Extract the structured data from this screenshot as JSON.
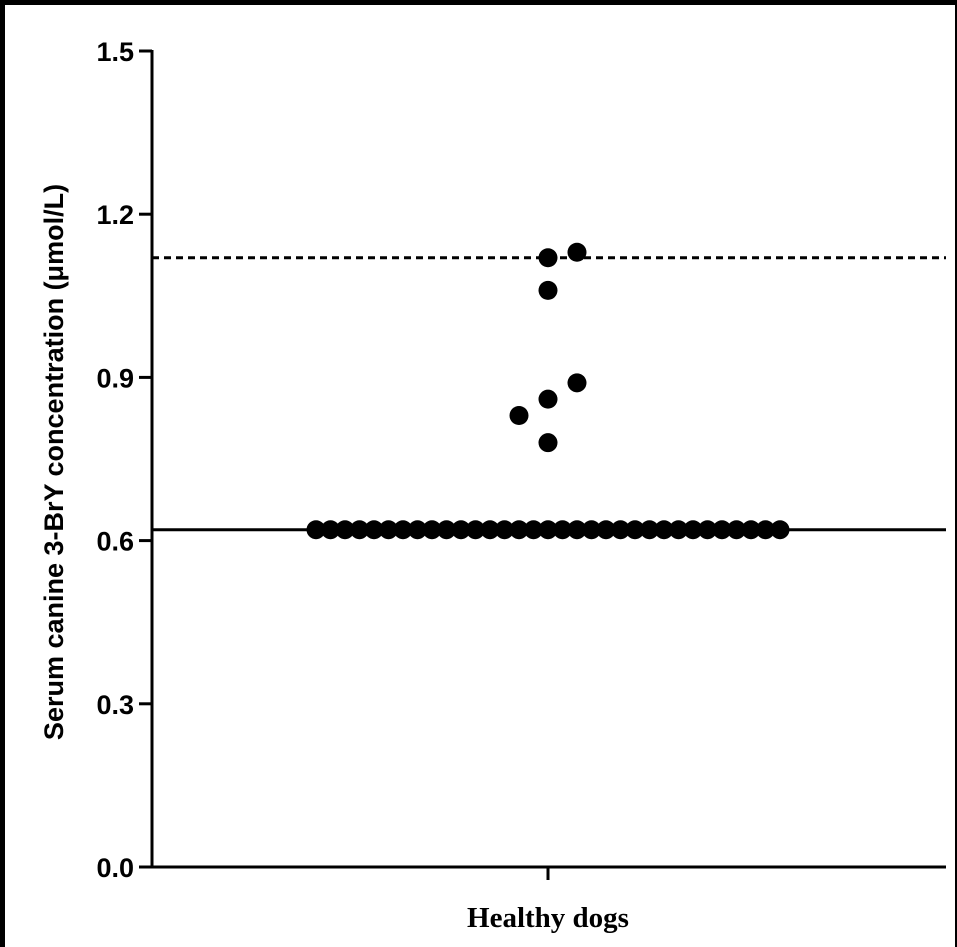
{
  "chart_data": {
    "type": "scatter",
    "title": "",
    "xlabel": "",
    "ylabel": "Serum canine 3-BrY concentration (μmol/L)",
    "categories": [
      "Healthy dogs"
    ],
    "ylim": [
      0,
      1.5
    ],
    "yticks": [
      "0.0",
      "0.3",
      "0.6",
      "0.9",
      "1.2",
      "1.5"
    ],
    "grid": false,
    "legend": "none",
    "reference_lines": [
      {
        "style": "solid",
        "y": 0.62
      },
      {
        "style": "dashed",
        "y": 1.12
      }
    ],
    "series": [
      {
        "category": "Healthy dogs",
        "points": [
          {
            "y": 1.13,
            "offset": 1
          },
          {
            "y": 1.12,
            "offset": 0
          },
          {
            "y": 1.06,
            "offset": 0
          },
          {
            "y": 0.89,
            "offset": 1
          },
          {
            "y": 0.86,
            "offset": 0
          },
          {
            "y": 0.83,
            "offset": -1
          },
          {
            "y": 0.78,
            "offset": 0
          }
        ],
        "floor_y": 0.62,
        "floor_offsets": [
          -8,
          -7.5,
          -7,
          -6.5,
          -6,
          -5.5,
          -5,
          -4.5,
          -4,
          -3.5,
          -3,
          -2.5,
          -2,
          -1.5,
          -1,
          -0.5,
          0,
          0.5,
          1,
          1.5,
          2,
          2.5,
          3,
          3.5,
          4,
          4.5,
          5,
          5.5,
          6,
          6.5,
          7,
          7.5,
          8
        ]
      }
    ],
    "colors": {
      "points": "#000000",
      "axes": "#000000"
    }
  }
}
